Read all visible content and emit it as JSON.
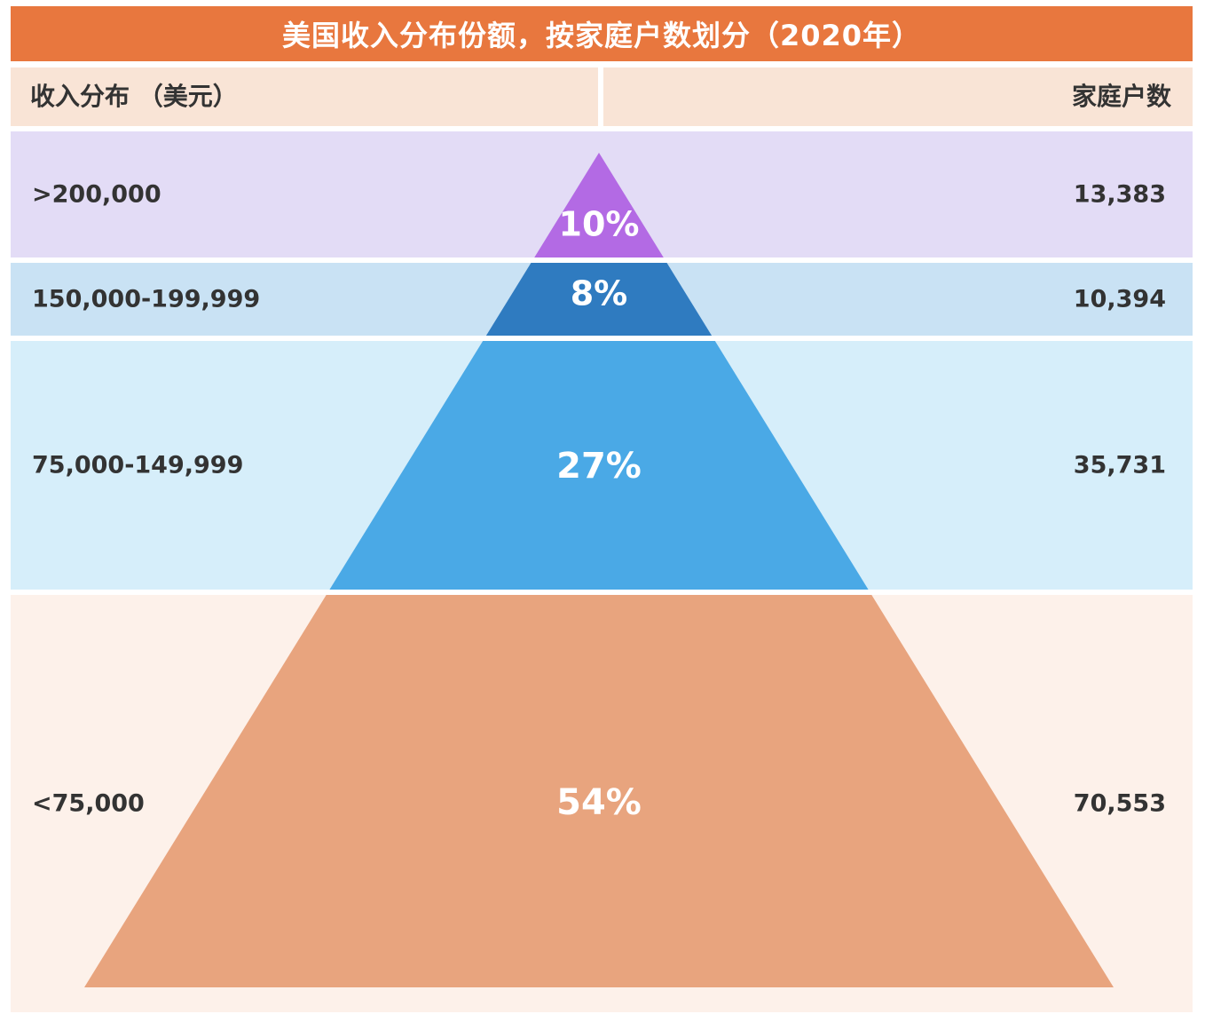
{
  "title": "美国收入分布份额，按家庭户数划分（2020年）",
  "header": {
    "left_label": "收入分布 （美元）",
    "right_label": "家庭户数"
  },
  "colors": {
    "title_bar": "#e8773e",
    "header_bg": "#f9e4d6",
    "segments": [
      "#b36ae4",
      "#2f7bc0",
      "#4aa9e6",
      "#e8a47e"
    ],
    "bands": [
      "#e3dcf6",
      "#c9e2f4",
      "#d6eefa",
      "#fdf1ea"
    ]
  },
  "chart_data": {
    "type": "pyramid",
    "title": "美国收入分布份额，按家庭户数划分（2020年）",
    "categories": [
      ">200,000",
      "150,000-199,999",
      "75,000-149,999",
      "<75,000"
    ],
    "category_header": "收入分布 （美元）",
    "value_header": "家庭户数",
    "shares": [
      "10%",
      "8%",
      "27%",
      "54%"
    ],
    "share_values": [
      10,
      8,
      27,
      54
    ],
    "households": [
      "13,383",
      "10,394",
      "35,731",
      "70,553"
    ],
    "household_values": [
      13383,
      10394,
      35731,
      70553
    ]
  }
}
